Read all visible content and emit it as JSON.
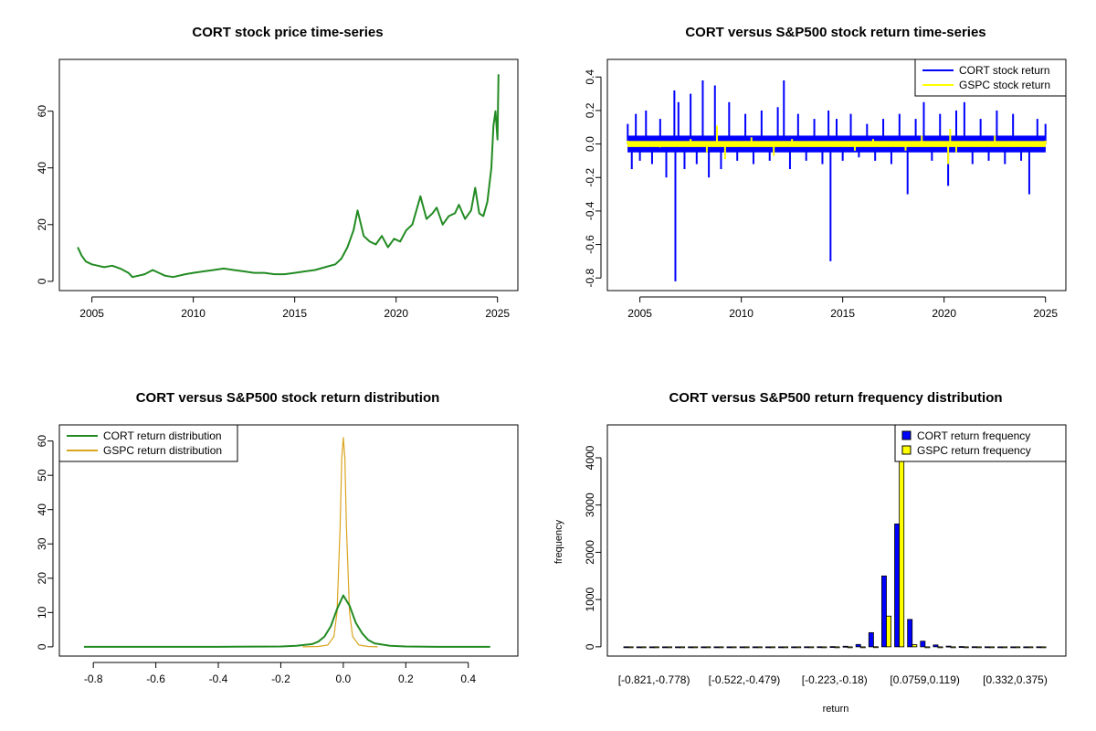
{
  "colors": {
    "price": "#228B22",
    "cort_return": "#0000FF",
    "gspc_return": "#FFFF00",
    "cort_density": "#228B22",
    "gspc_density": "#DAA520",
    "cort_bar": "#0000FF",
    "gspc_bar": "#FFFF00",
    "axis": "#000000"
  },
  "chart_data": [
    {
      "id": "price",
      "type": "line",
      "title": "CORT stock price time-series",
      "xlabel": "",
      "ylabel": "",
      "xlim": [
        2004.3,
        2025.1
      ],
      "ylim": [
        0,
        75
      ],
      "x_ticks": [
        2005,
        2010,
        2015,
        2020,
        2025
      ],
      "y_ticks": [
        0,
        20,
        40,
        60
      ],
      "series": [
        {
          "x": [
            2004.3,
            2004.5,
            2004.7,
            2005.0,
            2005.3,
            2005.6,
            2006.0,
            2006.4,
            2006.8,
            2007.0,
            2007.3,
            2007.6,
            2008.0,
            2008.3,
            2008.6,
            2009.0,
            2009.3,
            2009.6,
            2010.0,
            2010.5,
            2011.0,
            2011.5,
            2012.0,
            2012.5,
            2013.0,
            2013.5,
            2014.0,
            2014.5,
            2015.0,
            2015.5,
            2016.0,
            2016.5,
            2017.0,
            2017.3,
            2017.6,
            2017.9,
            2018.1,
            2018.4,
            2018.7,
            2019.0,
            2019.3,
            2019.6,
            2019.9,
            2020.2,
            2020.5,
            2020.8,
            2021.0,
            2021.2,
            2021.5,
            2021.8,
            2022.0,
            2022.3,
            2022.6,
            2022.9,
            2023.1,
            2023.4,
            2023.7,
            2023.9,
            2024.1,
            2024.3,
            2024.5,
            2024.7,
            2024.8,
            2024.9,
            2025.0,
            2025.05
          ],
          "y": [
            12,
            9,
            7,
            6,
            5.5,
            5,
            5.5,
            4.5,
            3,
            1.5,
            2,
            2.5,
            4,
            3,
            2,
            1.5,
            2,
            2.5,
            3,
            3.5,
            4,
            4.5,
            4,
            3.5,
            3,
            3,
            2.5,
            2.5,
            3,
            3.5,
            4,
            5,
            6,
            8,
            12,
            18,
            25,
            16,
            14,
            13,
            16,
            12,
            15,
            14,
            18,
            20,
            25,
            30,
            22,
            24,
            26,
            20,
            23,
            24,
            27,
            22,
            25,
            33,
            24,
            23,
            28,
            40,
            55,
            60,
            50,
            73
          ]
        }
      ]
    },
    {
      "id": "returns",
      "type": "line",
      "title": "CORT versus S&P500 stock return time-series",
      "xlabel": "",
      "ylabel": "",
      "xlim": [
        2004.3,
        2025.1
      ],
      "ylim": [
        -0.82,
        0.45
      ],
      "x_ticks": [
        2005,
        2010,
        2015,
        2020,
        2025
      ],
      "y_ticks": [
        -0.8,
        -0.6,
        -0.4,
        -0.2,
        0.0,
        0.2,
        0.4
      ],
      "legend_position": "top-right",
      "series": [
        {
          "name": "CORT stock return",
          "x": [
            2004.4,
            2004.6,
            2004.8,
            2005.0,
            2005.3,
            2005.6,
            2006.0,
            2006.3,
            2006.7,
            2006.75,
            2006.9,
            2007.2,
            2007.5,
            2007.8,
            2008.1,
            2008.4,
            2008.7,
            2009.0,
            2009.4,
            2009.8,
            2010.2,
            2010.6,
            2011.0,
            2011.4,
            2011.8,
            2012.1,
            2012.4,
            2012.8,
            2013.2,
            2013.6,
            2014.0,
            2014.3,
            2014.4,
            2014.7,
            2015.0,
            2015.4,
            2015.8,
            2016.2,
            2016.6,
            2017.0,
            2017.4,
            2017.8,
            2018.2,
            2018.6,
            2019.0,
            2019.4,
            2019.8,
            2020.2,
            2020.6,
            2021.0,
            2021.4,
            2021.8,
            2022.2,
            2022.6,
            2023.0,
            2023.4,
            2023.8,
            2024.2,
            2024.6,
            2025.0
          ],
          "y": [
            0.12,
            -0.15,
            0.18,
            -0.1,
            0.2,
            -0.12,
            0.15,
            -0.2,
            0.32,
            -0.82,
            0.25,
            -0.15,
            0.3,
            -0.12,
            0.38,
            -0.2,
            0.35,
            -0.15,
            0.25,
            -0.1,
            0.18,
            -0.12,
            0.2,
            -0.1,
            0.22,
            0.38,
            -0.15,
            0.18,
            -0.1,
            0.15,
            -0.12,
            0.2,
            -0.7,
            0.15,
            -0.1,
            0.18,
            -0.08,
            0.12,
            -0.1,
            0.15,
            -0.12,
            0.18,
            -0.3,
            0.15,
            0.25,
            -0.1,
            0.18,
            -0.25,
            0.2,
            0.25,
            -0.12,
            0.15,
            -0.1,
            0.2,
            -0.12,
            0.18,
            -0.1,
            -0.3,
            0.15,
            0.12
          ]
        },
        {
          "name": "GSPC stock return",
          "x": [
            2004.4,
            2006.0,
            2007.5,
            2008.3,
            2008.8,
            2009.2,
            2010.5,
            2011.6,
            2012.5,
            2015.6,
            2016.5,
            2018.1,
            2018.9,
            2020.2,
            2020.3,
            2020.6,
            2022.5,
            2025.0
          ],
          "y": [
            0.02,
            -0.02,
            0.03,
            -0.05,
            0.11,
            -0.09,
            0.04,
            -0.07,
            0.03,
            -0.04,
            0.03,
            -0.04,
            0.05,
            -0.12,
            0.09,
            -0.05,
            0.05,
            0.02
          ]
        }
      ]
    },
    {
      "id": "density",
      "type": "line",
      "title": "CORT versus S&P500 stock return distribution",
      "xlabel": "",
      "ylabel": "",
      "xlim": [
        -0.85,
        0.5
      ],
      "ylim": [
        0,
        62
      ],
      "x_ticks": [
        -0.8,
        -0.6,
        -0.4,
        -0.2,
        0.0,
        0.2,
        0.4
      ],
      "y_ticks": [
        0,
        10,
        20,
        30,
        40,
        50,
        60
      ],
      "legend_position": "top-left",
      "series": [
        {
          "name": "CORT return distribution",
          "x": [
            -0.83,
            -0.6,
            -0.4,
            -0.2,
            -0.15,
            -0.1,
            -0.08,
            -0.06,
            -0.04,
            -0.02,
            0.0,
            0.02,
            0.04,
            0.06,
            0.08,
            0.1,
            0.15,
            0.2,
            0.3,
            0.47
          ],
          "y": [
            0,
            0,
            0,
            0.1,
            0.3,
            0.8,
            1.5,
            3,
            6,
            11,
            15,
            12,
            7,
            4,
            2,
            1,
            0.3,
            0.1,
            0,
            0
          ]
        },
        {
          "name": "GSPC return distribution",
          "x": [
            -0.13,
            -0.08,
            -0.05,
            -0.03,
            -0.02,
            -0.01,
            -0.005,
            0.0,
            0.005,
            0.01,
            0.02,
            0.03,
            0.05,
            0.08,
            0.11
          ],
          "y": [
            0,
            0.1,
            0.5,
            3,
            10,
            35,
            55,
            61,
            55,
            35,
            10,
            3,
            0.5,
            0.1,
            0
          ]
        }
      ]
    },
    {
      "id": "freq",
      "type": "bar",
      "title": "CORT versus S&P500 return frequency distribution",
      "xlabel": "return",
      "ylabel": "frequency",
      "ylim": [
        0,
        4500
      ],
      "y_ticks": [
        0,
        1000,
        2000,
        3000,
        4000
      ],
      "legend_position": "top-right",
      "tick_labels": [
        {
          "index": 0,
          "label": "[-0.821,-0.778)"
        },
        {
          "index": 7,
          "label": "[-0.522,-0.479)"
        },
        {
          "index": 14,
          "label": "[-0.223,-0.18)"
        },
        {
          "index": 21,
          "label": "[0.0759,0.119)"
        },
        {
          "index": 28,
          "label": "[0.332,0.375)"
        }
      ],
      "bin_count": 33,
      "series": [
        {
          "name": "CORT return frequency",
          "values": [
            1,
            0,
            0,
            0,
            0,
            0,
            0,
            0,
            0,
            0,
            0,
            0,
            0,
            0,
            1,
            2,
            5,
            12,
            50,
            300,
            1500,
            2600,
            580,
            120,
            40,
            15,
            6,
            2,
            1,
            0,
            0,
            0,
            1
          ]
        },
        {
          "name": "GSPC return frequency",
          "values": [
            0,
            0,
            0,
            0,
            0,
            0,
            0,
            0,
            0,
            0,
            0,
            0,
            0,
            0,
            0,
            0,
            0,
            0,
            0,
            2,
            650,
            4500,
            45,
            0,
            0,
            0,
            0,
            0,
            0,
            0,
            0,
            0,
            0
          ]
        }
      ]
    }
  ]
}
